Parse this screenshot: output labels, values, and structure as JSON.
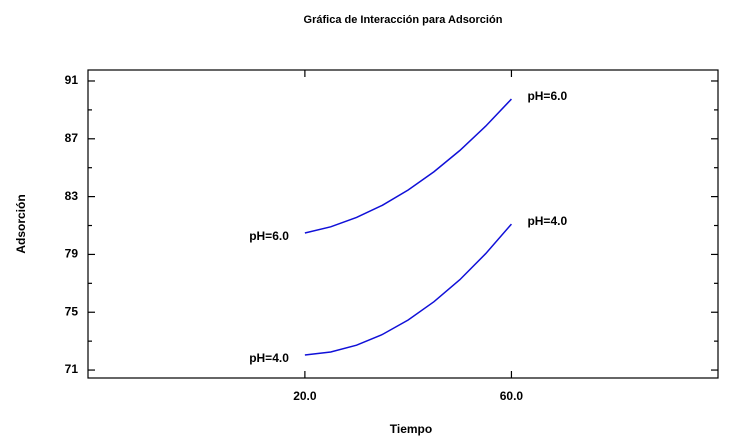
{
  "chart_data": {
    "type": "line",
    "title": "Gráfica de Interacción para Adsorción",
    "xlabel": "Tiempo",
    "ylabel": "Adsorción",
    "x": [
      20,
      25,
      30,
      35,
      40,
      45,
      50,
      55,
      60
    ],
    "series": [
      {
        "name": "pH=6.0",
        "color": "#1010d8",
        "values": [
          80.48,
          80.91,
          81.56,
          82.4,
          83.46,
          84.72,
          86.19,
          87.87,
          89.75
        ]
      },
      {
        "name": "pH=4.0",
        "color": "#1010d8",
        "values": [
          72.04,
          72.25,
          72.72,
          73.46,
          74.46,
          75.73,
          77.25,
          79.05,
          81.1
        ]
      }
    ],
    "xlim": [
      -22,
      100
    ],
    "xticks": [
      {
        "value": 20,
        "label": "20.0"
      },
      {
        "value": 60,
        "label": "60.0"
      }
    ],
    "ylim": [
      70.45,
      91.76
    ],
    "yticks": [
      71,
      75,
      79,
      83,
      87,
      91
    ]
  }
}
